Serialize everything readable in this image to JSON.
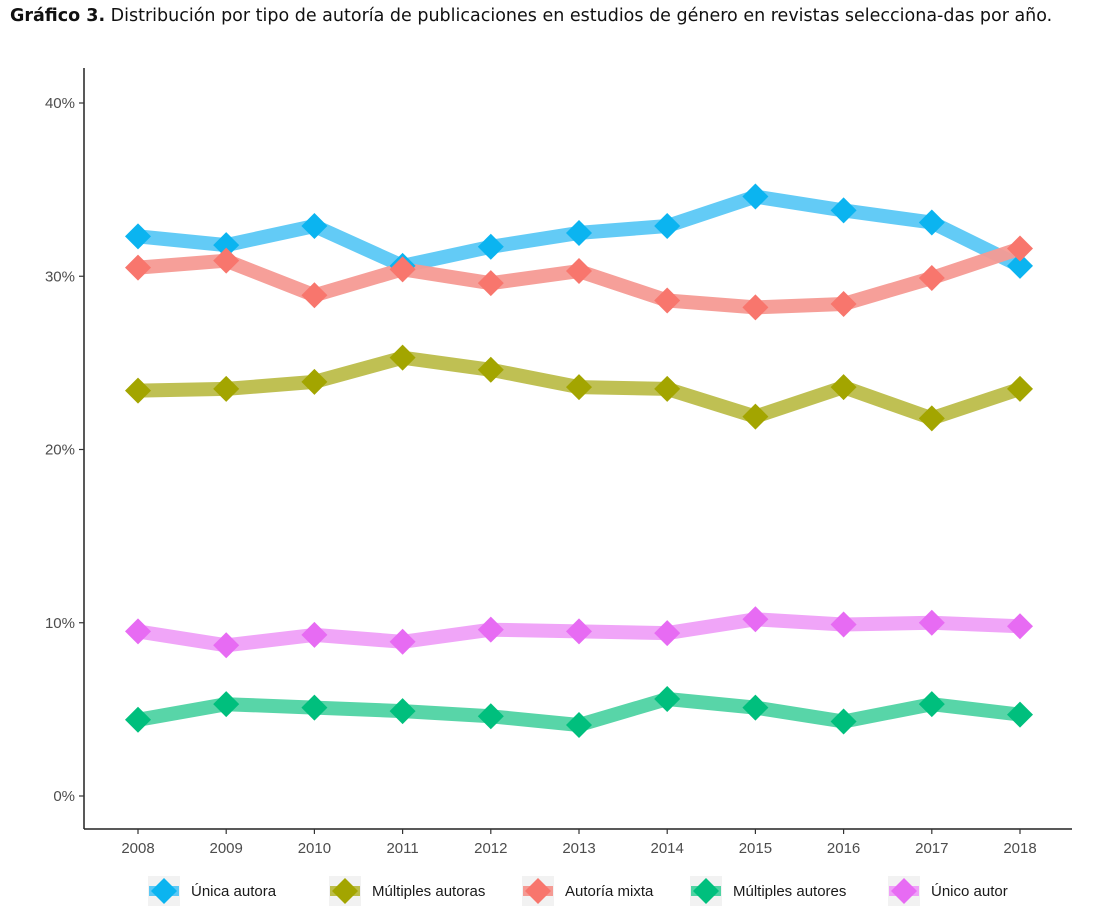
{
  "caption": {
    "label": "Gráfico 3.",
    "text": " Distribución por tipo de autoría de publicaciones en estudios de género en revistas selecciona-das por año."
  },
  "chart_data": {
    "type": "line",
    "x": [
      "2008",
      "2009",
      "2010",
      "2011",
      "2012",
      "2013",
      "2014",
      "2015",
      "2016",
      "2017",
      "2018"
    ],
    "ylim": [
      0,
      40
    ],
    "yticks": [
      "0%",
      "10%",
      "20%",
      "30%",
      "40%"
    ],
    "ytick_values": [
      0,
      10,
      20,
      30,
      40
    ],
    "grid": false,
    "legend_position": "bottom",
    "marker": "diamond",
    "series": [
      {
        "name": "Única autora",
        "color": "#5BC8F5",
        "marker_color": "#0BB4F0",
        "values": [
          32.3,
          31.8,
          32.9,
          30.6,
          31.7,
          32.5,
          32.9,
          34.6,
          33.8,
          33.1,
          30.6
        ]
      },
      {
        "name": "Múltiples autoras",
        "color": "#BCBD4A",
        "marker_color": "#A3A500",
        "values": [
          23.4,
          23.5,
          23.9,
          25.3,
          24.6,
          23.6,
          23.5,
          21.9,
          23.6,
          21.8,
          23.5
        ]
      },
      {
        "name": "Autoría mixta",
        "color": "#F59A93",
        "marker_color": "#F8766D",
        "values": [
          30.5,
          30.9,
          28.9,
          30.4,
          29.6,
          30.3,
          28.6,
          28.2,
          28.4,
          29.9,
          31.6
        ]
      },
      {
        "name": "Múltiples autores",
        "color": "#4FD3A3",
        "marker_color": "#00BF7D",
        "values": [
          4.4,
          5.3,
          5.1,
          4.9,
          4.6,
          4.1,
          5.6,
          5.1,
          4.3,
          5.3,
          4.7
        ]
      },
      {
        "name": "Único autor",
        "color": "#EFA0F8",
        "marker_color": "#E76BF3",
        "values": [
          9.5,
          8.7,
          9.3,
          8.9,
          9.6,
          9.5,
          9.4,
          10.2,
          9.9,
          10.0,
          9.8
        ]
      }
    ]
  }
}
